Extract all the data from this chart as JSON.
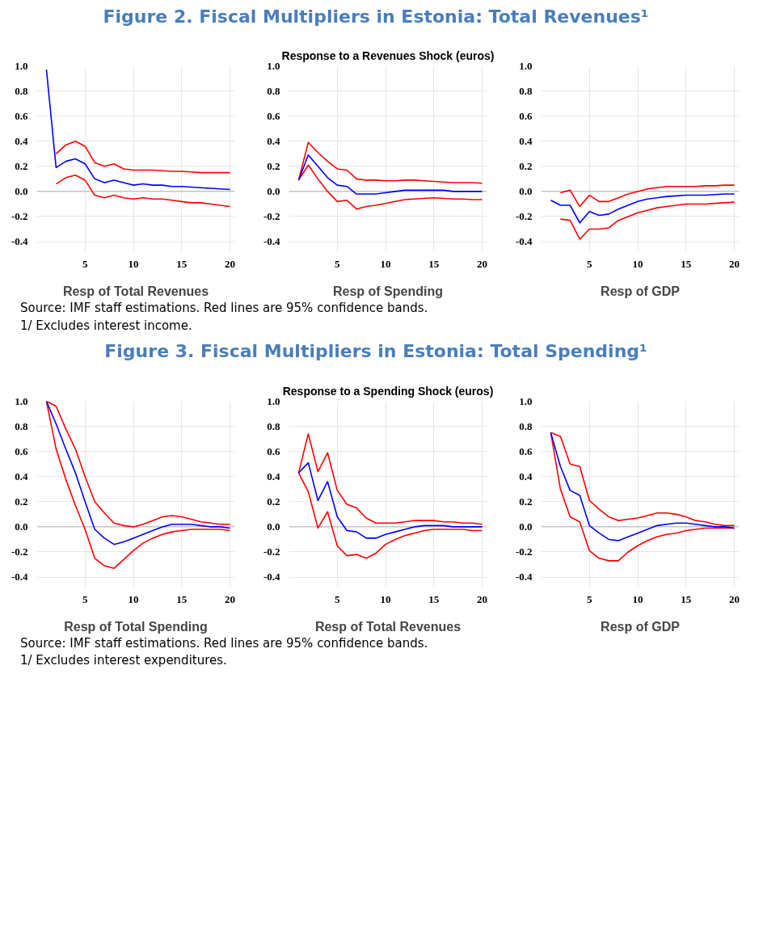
{
  "chart_data": [
    {
      "type": "line",
      "title": "Figure 2. Fiscal Multipliers in Estonia: Total Revenues¹",
      "xlabel": "Resp of Total Revenues",
      "x": [
        1,
        2,
        3,
        4,
        5,
        6,
        7,
        8,
        9,
        10,
        11,
        12,
        13,
        14,
        15,
        16,
        17,
        18,
        19,
        20
      ],
      "xlim": [
        0,
        20.5
      ],
      "ylim": [
        -0.48,
        1.0
      ],
      "xticks": [
        5,
        10,
        15,
        20
      ],
      "yticks": [
        {
          "value": -0.4,
          "label": "-0.4"
        },
        {
          "value": -0.2,
          "label": "-0.2"
        },
        {
          "value": 0,
          "label": "0.0"
        },
        {
          "value": 0.2,
          "label": "0.2"
        },
        {
          "value": 0.4,
          "label": "0.4"
        },
        {
          "value": 0.6,
          "label": "0.6"
        },
        {
          "value": 0.8,
          "label": "0.8"
        },
        {
          "value": 1,
          "label": "1.0"
        }
      ],
      "grid": true,
      "ref_lines": [
        {
          "axis": "y",
          "value": 0,
          "color": "#b0b0b0"
        }
      ],
      "series": [
        {
          "color": "#ff0000",
          "values": [
            null,
            0.3,
            0.37,
            0.4,
            0.36,
            0.23,
            0.2,
            0.22,
            0.18,
            0.17,
            0.17,
            0.17,
            0.165,
            0.16,
            0.16,
            0.155,
            0.15,
            0.15,
            0.15,
            0.15
          ]
        },
        {
          "color": "#ff0000",
          "values": [
            null,
            0.06,
            0.11,
            0.13,
            0.09,
            -0.03,
            -0.05,
            -0.03,
            -0.05,
            -0.06,
            -0.05,
            -0.06,
            -0.06,
            -0.07,
            -0.08,
            -0.09,
            -0.09,
            -0.1,
            -0.11,
            -0.12
          ]
        },
        {
          "color": "#0000ff",
          "values": [
            0.97,
            0.19,
            0.24,
            0.26,
            0.22,
            0.1,
            0.07,
            0.09,
            0.07,
            0.05,
            0.06,
            0.05,
            0.05,
            0.04,
            0.04,
            0.035,
            0.03,
            0.025,
            0.02,
            0.015
          ]
        }
      ],
      "annotations": [
        "Source: IMF staff estimations. Red lines are 95% confidence bands.",
        "1/ Excludes interest income."
      ]
    },
    {
      "type": "line",
      "subtitle": "Response to a Revenues Shock (euros)",
      "xlabel": "Resp of Spending",
      "x": [
        1,
        2,
        3,
        4,
        5,
        6,
        7,
        8,
        9,
        10,
        11,
        12,
        13,
        14,
        15,
        16,
        17,
        18,
        19,
        20
      ],
      "xlim": [
        0,
        20.5
      ],
      "ylim": [
        -0.48,
        1.0
      ],
      "xticks": [
        5,
        10,
        15,
        20
      ],
      "yticks": [
        {
          "value": -0.4,
          "label": "-0.4"
        },
        {
          "value": -0.2,
          "label": "-0.2"
        },
        {
          "value": 0,
          "label": "0.0"
        },
        {
          "value": 0.2,
          "label": "0.2"
        },
        {
          "value": 0.4,
          "label": "0.4"
        },
        {
          "value": 0.6,
          "label": "0.6"
        },
        {
          "value": 0.8,
          "label": "0.8"
        },
        {
          "value": 1,
          "label": "1.0"
        }
      ],
      "grid": true,
      "ref_lines": [
        {
          "axis": "y",
          "value": 0,
          "color": "#b0b0b0"
        }
      ],
      "series": [
        {
          "color": "#ff0000",
          "values": [
            0.09,
            0.39,
            0.31,
            0.24,
            0.18,
            0.17,
            0.1,
            0.09,
            0.09,
            0.085,
            0.085,
            0.09,
            0.09,
            0.085,
            0.08,
            0.075,
            0.07,
            0.07,
            0.07,
            0.065
          ]
        },
        {
          "color": "#ff0000",
          "values": [
            0.09,
            0.21,
            0.1,
            0.0,
            -0.08,
            -0.07,
            -0.14,
            -0.12,
            -0.11,
            -0.095,
            -0.08,
            -0.065,
            -0.06,
            -0.055,
            -0.05,
            -0.055,
            -0.06,
            -0.06,
            -0.065,
            -0.065
          ]
        },
        {
          "color": "#0000ff",
          "values": [
            0.09,
            0.29,
            0.2,
            0.11,
            0.05,
            0.04,
            -0.02,
            -0.02,
            -0.02,
            -0.01,
            0.0,
            0.01,
            0.01,
            0.01,
            0.01,
            0.01,
            0.0,
            0.0,
            0.0,
            0.0
          ]
        }
      ]
    },
    {
      "type": "line",
      "xlabel": "Resp of GDP",
      "x": [
        1,
        2,
        3,
        4,
        5,
        6,
        7,
        8,
        9,
        10,
        11,
        12,
        13,
        14,
        15,
        16,
        17,
        18,
        19,
        20
      ],
      "xlim": [
        0,
        20.5
      ],
      "ylim": [
        -0.48,
        1.0
      ],
      "xticks": [
        5,
        10,
        15,
        20
      ],
      "yticks": [
        {
          "value": -0.4,
          "label": "-0.4"
        },
        {
          "value": -0.2,
          "label": "-0.2"
        },
        {
          "value": 0,
          "label": "0.0"
        },
        {
          "value": 0.2,
          "label": "0.2"
        },
        {
          "value": 0.4,
          "label": "0.4"
        },
        {
          "value": 0.6,
          "label": "0.6"
        },
        {
          "value": 0.8,
          "label": "0.8"
        },
        {
          "value": 1,
          "label": "1.0"
        }
      ],
      "grid": true,
      "ref_lines": [
        {
          "axis": "y",
          "value": 0,
          "color": "#b0b0b0"
        }
      ],
      "series": [
        {
          "color": "#ff0000",
          "values": [
            null,
            -0.01,
            0.01,
            -0.12,
            -0.03,
            -0.08,
            -0.08,
            -0.05,
            -0.02,
            0.0,
            0.02,
            0.03,
            0.04,
            0.04,
            0.04,
            0.04,
            0.045,
            0.045,
            0.05,
            0.05
          ]
        },
        {
          "color": "#ff0000",
          "values": [
            null,
            -0.22,
            -0.23,
            -0.38,
            -0.3,
            -0.3,
            -0.29,
            -0.23,
            -0.2,
            -0.17,
            -0.15,
            -0.13,
            -0.12,
            -0.11,
            -0.1,
            -0.1,
            -0.1,
            -0.095,
            -0.09,
            -0.085
          ]
        },
        {
          "color": "#0000ff",
          "values": [
            -0.07,
            -0.11,
            -0.11,
            -0.25,
            -0.16,
            -0.19,
            -0.18,
            -0.14,
            -0.11,
            -0.08,
            -0.06,
            -0.05,
            -0.04,
            -0.035,
            -0.03,
            -0.03,
            -0.03,
            -0.025,
            -0.02,
            -0.02
          ]
        }
      ]
    },
    {
      "type": "line",
      "title": "Figure 3. Fiscal Multipliers in Estonia: Total Spending¹",
      "xlabel": "Resp of Total Spending",
      "x": [
        1,
        2,
        3,
        4,
        5,
        6,
        7,
        8,
        9,
        10,
        11,
        12,
        13,
        14,
        15,
        16,
        17,
        18,
        19,
        20
      ],
      "xlim": [
        0,
        20.5
      ],
      "ylim": [
        -0.48,
        1.0
      ],
      "xticks": [
        5,
        10,
        15,
        20
      ],
      "yticks": [
        {
          "value": -0.4,
          "label": "-0.4"
        },
        {
          "value": -0.2,
          "label": "-0.2"
        },
        {
          "value": 0,
          "label": "0.0"
        },
        {
          "value": 0.2,
          "label": "0.2"
        },
        {
          "value": 0.4,
          "label": "0.4"
        },
        {
          "value": 0.6,
          "label": "0.6"
        },
        {
          "value": 0.8,
          "label": "0.8"
        },
        {
          "value": 1,
          "label": "1.0"
        }
      ],
      "grid": true,
      "ref_lines": [
        {
          "axis": "y",
          "value": 0,
          "color": "#b0b0b0"
        }
      ],
      "series": [
        {
          "color": "#ff0000",
          "values": [
            1.0,
            0.96,
            0.78,
            0.62,
            0.4,
            0.2,
            0.11,
            0.03,
            0.01,
            0.0,
            0.02,
            0.05,
            0.08,
            0.09,
            0.08,
            0.06,
            0.04,
            0.03,
            0.02,
            0.02
          ]
        },
        {
          "color": "#ff0000",
          "values": [
            1.0,
            0.62,
            0.38,
            0.17,
            -0.02,
            -0.25,
            -0.31,
            -0.33,
            -0.26,
            -0.19,
            -0.13,
            -0.09,
            -0.06,
            -0.04,
            -0.03,
            -0.02,
            -0.02,
            -0.02,
            -0.02,
            -0.03
          ]
        },
        {
          "color": "#0000ff",
          "values": [
            1.0,
            0.82,
            0.62,
            0.43,
            0.2,
            -0.02,
            -0.09,
            -0.14,
            -0.12,
            -0.09,
            -0.06,
            -0.03,
            0.0,
            0.02,
            0.02,
            0.02,
            0.01,
            0.0,
            0.0,
            -0.01
          ]
        }
      ],
      "annotations": [
        "Source: IMF staff estimations. Red lines are 95% confidence bands.",
        "1/ Excludes interest expenditures."
      ]
    },
    {
      "type": "line",
      "subtitle": "Response to a Spending Shock (euros)",
      "xlabel": "Resp of Total Revenues",
      "x": [
        1,
        2,
        3,
        4,
        5,
        6,
        7,
        8,
        9,
        10,
        11,
        12,
        13,
        14,
        15,
        16,
        17,
        18,
        19,
        20
      ],
      "xlim": [
        0,
        20.5
      ],
      "ylim": [
        -0.48,
        1.0
      ],
      "xticks": [
        5,
        10,
        15,
        20
      ],
      "yticks": [
        {
          "value": -0.4,
          "label": "-0.4"
        },
        {
          "value": -0.2,
          "label": "-0.2"
        },
        {
          "value": 0,
          "label": "0.0"
        },
        {
          "value": 0.2,
          "label": "0.2"
        },
        {
          "value": 0.4,
          "label": "0.4"
        },
        {
          "value": 0.6,
          "label": "0.6"
        },
        {
          "value": 0.8,
          "label": "0.8"
        },
        {
          "value": 1,
          "label": "1.0"
        }
      ],
      "grid": true,
      "ref_lines": [
        {
          "axis": "y",
          "value": 0,
          "color": "#b0b0b0"
        }
      ],
      "series": [
        {
          "color": "#ff0000",
          "values": [
            0.43,
            0.74,
            0.44,
            0.59,
            0.29,
            0.18,
            0.15,
            0.07,
            0.03,
            0.03,
            0.03,
            0.04,
            0.05,
            0.05,
            0.05,
            0.04,
            0.04,
            0.03,
            0.03,
            0.02
          ]
        },
        {
          "color": "#ff0000",
          "values": [
            0.43,
            0.28,
            -0.01,
            0.12,
            -0.15,
            -0.23,
            -0.22,
            -0.25,
            -0.21,
            -0.14,
            -0.1,
            -0.07,
            -0.05,
            -0.03,
            -0.02,
            -0.02,
            -0.02,
            -0.02,
            -0.03,
            -0.03
          ]
        },
        {
          "color": "#0000ff",
          "values": [
            0.43,
            0.51,
            0.21,
            0.36,
            0.08,
            -0.03,
            -0.04,
            -0.09,
            -0.09,
            -0.06,
            -0.04,
            -0.02,
            0.0,
            0.01,
            0.01,
            0.01,
            0.0,
            0.0,
            0.0,
            0.0
          ]
        }
      ]
    },
    {
      "type": "line",
      "xlabel": "Resp of GDP",
      "x": [
        1,
        2,
        3,
        4,
        5,
        6,
        7,
        8,
        9,
        10,
        11,
        12,
        13,
        14,
        15,
        16,
        17,
        18,
        19,
        20
      ],
      "xlim": [
        0,
        20.5
      ],
      "ylim": [
        -0.48,
        1.0
      ],
      "xticks": [
        5,
        10,
        15,
        20
      ],
      "yticks": [
        {
          "value": -0.4,
          "label": "-0.4"
        },
        {
          "value": -0.2,
          "label": "-0.2"
        },
        {
          "value": 0,
          "label": "0.0"
        },
        {
          "value": 0.2,
          "label": "0.2"
        },
        {
          "value": 0.4,
          "label": "0.4"
        },
        {
          "value": 0.6,
          "label": "0.6"
        },
        {
          "value": 0.8,
          "label": "0.8"
        },
        {
          "value": 1,
          "label": "1.0"
        }
      ],
      "grid": true,
      "ref_lines": [
        {
          "axis": "y",
          "value": 0,
          "color": "#b0b0b0"
        }
      ],
      "series": [
        {
          "color": "#ff0000",
          "values": [
            0.75,
            0.72,
            0.5,
            0.48,
            0.21,
            0.14,
            0.08,
            0.05,
            0.06,
            0.07,
            0.09,
            0.11,
            0.11,
            0.1,
            0.08,
            0.05,
            0.04,
            0.02,
            0.01,
            0.01
          ]
        },
        {
          "color": "#ff0000",
          "values": [
            0.75,
            0.3,
            0.08,
            0.04,
            -0.19,
            -0.25,
            -0.27,
            -0.27,
            -0.2,
            -0.15,
            -0.11,
            -0.08,
            -0.06,
            -0.05,
            -0.03,
            -0.02,
            -0.01,
            -0.01,
            -0.01,
            -0.01
          ]
        },
        {
          "color": "#0000ff",
          "values": [
            0.75,
            0.48,
            0.29,
            0.25,
            0.01,
            -0.05,
            -0.1,
            -0.11,
            -0.08,
            -0.05,
            -0.02,
            0.01,
            0.02,
            0.03,
            0.03,
            0.02,
            0.01,
            0.0,
            0.0,
            -0.01
          ]
        }
      ]
    }
  ]
}
